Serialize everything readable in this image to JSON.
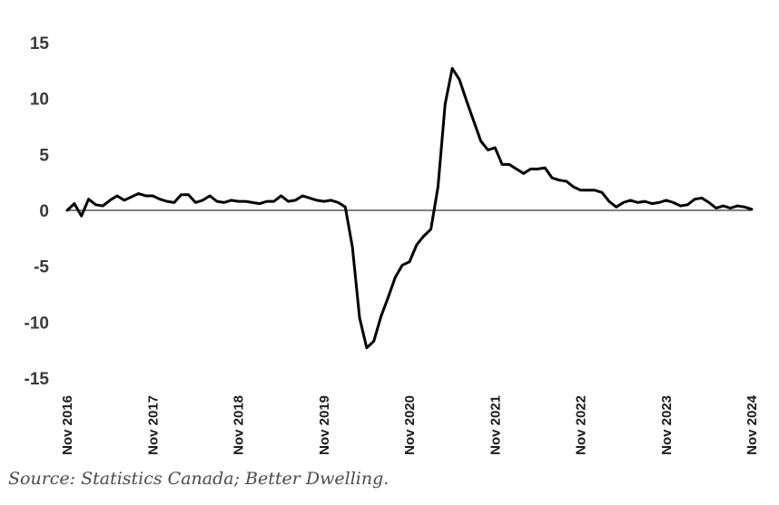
{
  "chart_data": {
    "type": "line",
    "title": "",
    "xlabel": "",
    "ylabel": "",
    "ylim": [
      -15,
      15
    ],
    "yticks": [
      15,
      10,
      5,
      0,
      -5,
      -10,
      -15
    ],
    "x_tick_labels": [
      "Nov 2016",
      "Nov 2017",
      "Nov 2018",
      "Nov 2019",
      "Nov 2020",
      "Nov 2021",
      "Nov 2022",
      "Nov 2023",
      "Nov 2024"
    ],
    "grid": false,
    "legend": "none",
    "line_color": "#000000",
    "series": [
      {
        "name": "",
        "x_start": "2016-11",
        "frequency": "monthly",
        "values": [
          0.0,
          0.6,
          -0.5,
          1.0,
          0.5,
          0.4,
          0.9,
          1.3,
          0.9,
          1.2,
          1.5,
          1.3,
          1.3,
          1.0,
          0.8,
          0.7,
          1.4,
          1.4,
          0.7,
          0.9,
          1.3,
          0.8,
          0.7,
          0.9,
          0.8,
          0.8,
          0.7,
          0.6,
          0.8,
          0.8,
          1.3,
          0.8,
          0.9,
          1.3,
          1.1,
          0.9,
          0.8,
          0.9,
          0.7,
          0.3,
          -3.3,
          -9.6,
          -12.3,
          -11.7,
          -9.5,
          -7.8,
          -6.0,
          -4.9,
          -4.6,
          -3.1,
          -2.3,
          -1.7,
          2.1,
          9.5,
          12.7,
          11.7,
          9.8,
          8.0,
          6.2,
          5.4,
          5.6,
          4.1,
          4.1,
          3.7,
          3.3,
          3.7,
          3.7,
          3.8,
          2.9,
          2.7,
          2.6,
          2.1,
          1.8,
          1.8,
          1.8,
          1.6,
          0.8,
          0.3,
          0.7,
          0.9,
          0.7,
          0.8,
          0.6,
          0.7,
          0.9,
          0.7,
          0.4,
          0.5,
          1.0,
          1.1,
          0.7,
          0.2,
          0.4,
          0.2,
          0.4,
          0.3,
          0.1
        ]
      }
    ]
  },
  "source": "Source: Statistics Canada; Better Dwelling."
}
